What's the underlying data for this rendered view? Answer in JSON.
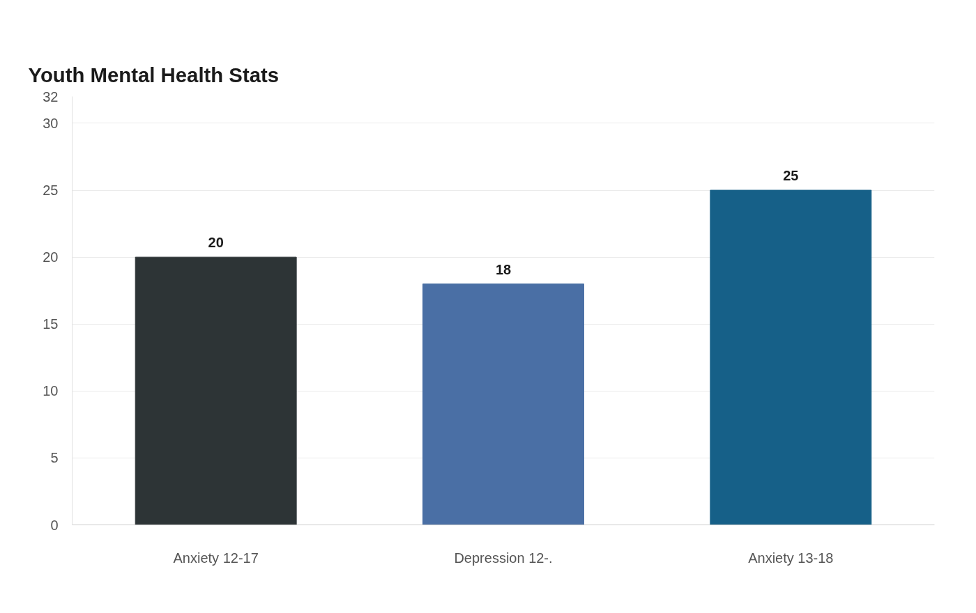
{
  "chart_data": {
    "type": "bar",
    "title": "Youth Mental Health Stats",
    "categories": [
      "Anxiety 12-17",
      "Depression 12-.",
      "Anxiety 13-18"
    ],
    "values": [
      20,
      18,
      25
    ],
    "colors": [
      "#2d3436",
      "#4a6fa5",
      "#166088"
    ],
    "ylim": [
      0,
      32
    ],
    "yticks": [
      0,
      5,
      10,
      15,
      20,
      25,
      30,
      32
    ],
    "grid": "y",
    "data_labels": true
  }
}
